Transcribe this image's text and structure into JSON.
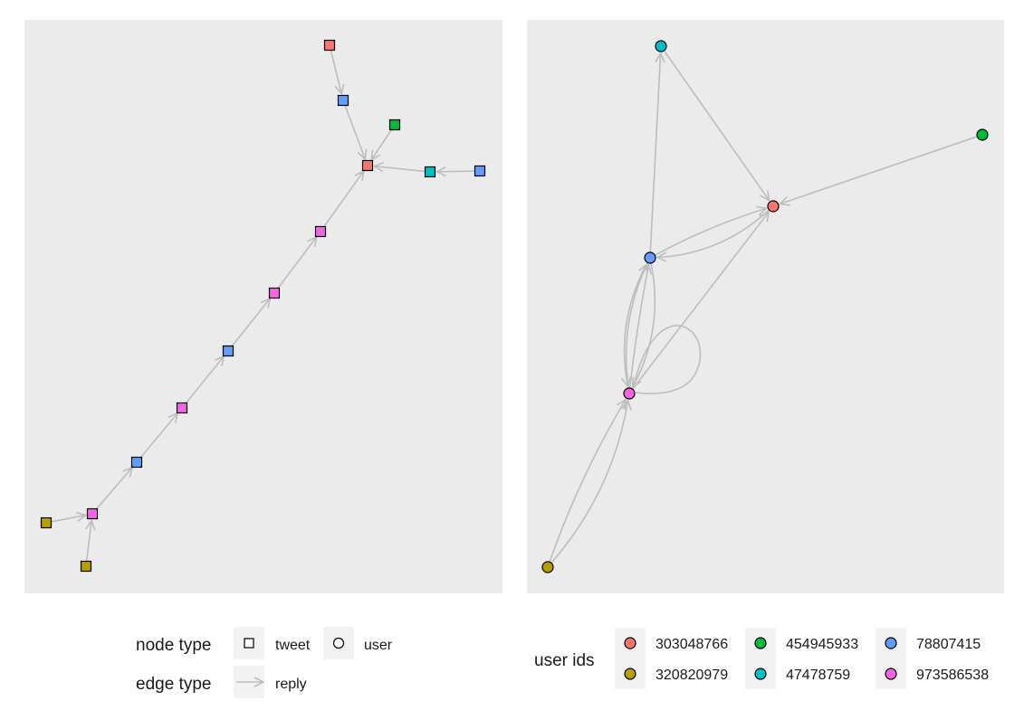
{
  "colors": {
    "panel_bg": "#ebebeb",
    "key_bg": "#f2f2f2",
    "edge": "#bdbdbd",
    "303048766": "#f8766d",
    "320820979": "#b79f00",
    "454945933": "#00ba38",
    "47478759": "#00bfc4",
    "78807415": "#619cff",
    "973586538": "#f564e3"
  },
  "legend": {
    "node_type_title": "node type",
    "node_type_items": [
      {
        "label": "tweet",
        "shape": "square-icon"
      },
      {
        "label": "user",
        "shape": "circle-icon"
      }
    ],
    "edge_type_title": "edge type",
    "edge_type_items": [
      {
        "label": "reply",
        "shape": "arrow-icon"
      }
    ],
    "user_ids_title": "user ids",
    "user_ids": [
      "303048766",
      "320820979",
      "454945933",
      "47478759",
      "78807415",
      "973586538"
    ]
  },
  "tweet_graph": {
    "nodes": [
      {
        "id": "t1",
        "user": "303048766"
      },
      {
        "id": "t2",
        "user": "78807415"
      },
      {
        "id": "t3",
        "user": "454945933"
      },
      {
        "id": "t4",
        "user": "303048766"
      },
      {
        "id": "t5",
        "user": "47478759"
      },
      {
        "id": "t6",
        "user": "78807415"
      },
      {
        "id": "t7",
        "user": "973586538"
      },
      {
        "id": "t8",
        "user": "973586538"
      },
      {
        "id": "t9",
        "user": "78807415"
      },
      {
        "id": "t10",
        "user": "973586538"
      },
      {
        "id": "t11",
        "user": "78807415"
      },
      {
        "id": "t12",
        "user": "973586538"
      },
      {
        "id": "t13",
        "user": "320820979"
      },
      {
        "id": "t14",
        "user": "320820979"
      }
    ],
    "edges": [
      {
        "from": "t1",
        "to": "t2"
      },
      {
        "from": "t2",
        "to": "t4"
      },
      {
        "from": "t3",
        "to": "t4"
      },
      {
        "from": "t5",
        "to": "t4"
      },
      {
        "from": "t6",
        "to": "t5"
      },
      {
        "from": "t7",
        "to": "t4"
      },
      {
        "from": "t8",
        "to": "t7"
      },
      {
        "from": "t9",
        "to": "t8"
      },
      {
        "from": "t10",
        "to": "t9"
      },
      {
        "from": "t11",
        "to": "t10"
      },
      {
        "from": "t12",
        "to": "t11"
      },
      {
        "from": "t13",
        "to": "t12"
      },
      {
        "from": "t14",
        "to": "t12"
      }
    ]
  },
  "user_graph": {
    "nodes": [
      {
        "id": "47478759"
      },
      {
        "id": "454945933"
      },
      {
        "id": "303048766"
      },
      {
        "id": "78807415"
      },
      {
        "id": "973586538"
      },
      {
        "id": "320820979"
      }
    ],
    "edges": [
      {
        "from": "47478759",
        "to": "303048766"
      },
      {
        "from": "454945933",
        "to": "303048766"
      },
      {
        "from": "78807415",
        "to": "47478759"
      },
      {
        "from": "303048766",
        "to": "78807415"
      },
      {
        "from": "78807415",
        "to": "303048766"
      },
      {
        "from": "973586538",
        "to": "303048766"
      },
      {
        "from": "973586538",
        "to": "78807415"
      },
      {
        "from": "973586538",
        "to": "78807415"
      },
      {
        "from": "78807415",
        "to": "973586538"
      },
      {
        "from": "78807415",
        "to": "973586538"
      },
      {
        "from": "973586538",
        "to": "973586538"
      },
      {
        "from": "320820979",
        "to": "973586538"
      },
      {
        "from": "320820979",
        "to": "973586538"
      }
    ]
  }
}
